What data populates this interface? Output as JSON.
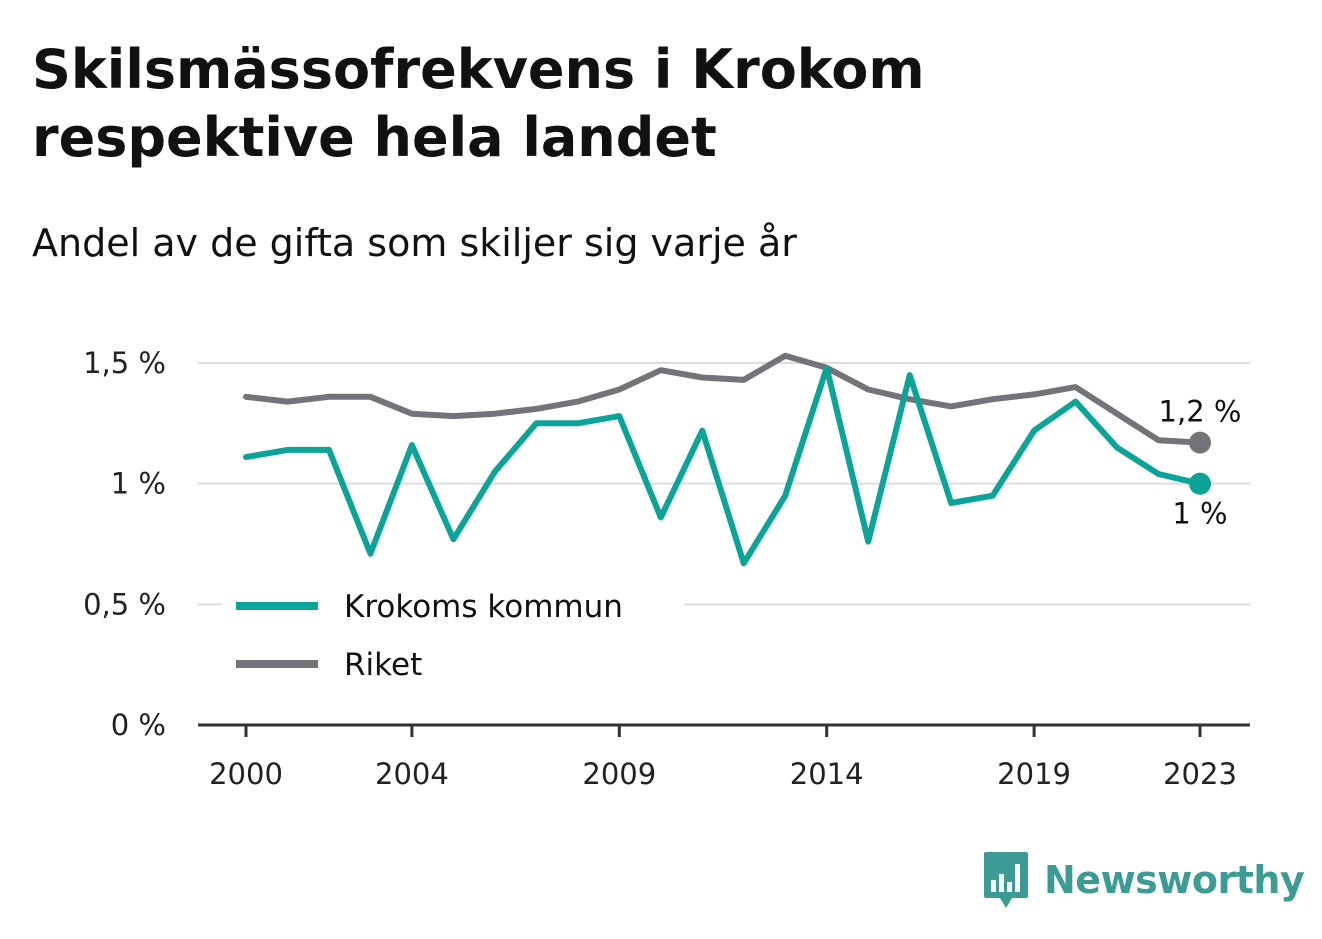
{
  "title": "Skilsmässofrekvens i Krokom respektive hela landet",
  "subtitle": "Andel av de gifta som skiljer sig varje år",
  "brand": {
    "name": "Newsworthy",
    "icon": "bar-chart-speech-bubble-icon",
    "color": "#3c9c95"
  },
  "chart_data": {
    "type": "line",
    "x": [
      2000,
      2001,
      2002,
      2003,
      2004,
      2005,
      2006,
      2007,
      2008,
      2009,
      2010,
      2011,
      2012,
      2013,
      2014,
      2015,
      2016,
      2017,
      2018,
      2019,
      2020,
      2021,
      2022,
      2023
    ],
    "x_tick_labels": [
      "2000",
      "2004",
      "2009",
      "2014",
      "2019",
      "2023"
    ],
    "y_tick_labels": [
      "0 %",
      "0,5 %",
      "1 %",
      "1,5 %"
    ],
    "ylim": [
      0,
      1.5
    ],
    "grid": true,
    "legend_position": "bottom-left",
    "series": [
      {
        "name": "Krokoms kommun",
        "color": "#0ca498",
        "end_label": "1 %",
        "values": [
          1.11,
          1.14,
          1.14,
          0.71,
          1.16,
          0.77,
          1.05,
          1.25,
          1.25,
          1.28,
          0.86,
          1.22,
          0.67,
          0.95,
          1.48,
          0.76,
          1.45,
          0.92,
          0.95,
          1.22,
          1.34,
          1.15,
          1.04,
          1.0
        ]
      },
      {
        "name": "Riket",
        "color": "#74737a",
        "end_label": "1,2 %",
        "values": [
          1.36,
          1.34,
          1.36,
          1.36,
          1.29,
          1.28,
          1.29,
          1.31,
          1.34,
          1.39,
          1.47,
          1.44,
          1.43,
          1.53,
          1.48,
          1.39,
          1.35,
          1.32,
          1.35,
          1.37,
          1.4,
          1.29,
          1.18,
          1.17
        ]
      }
    ]
  }
}
